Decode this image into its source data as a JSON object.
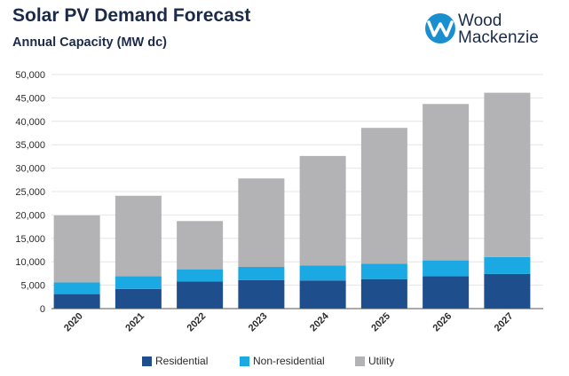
{
  "header": {
    "title": "Solar PV Demand Forecast",
    "subtitle": "Annual Capacity (MW dc)"
  },
  "logo": {
    "line1": "Wood",
    "line2": "Mackenzie"
  },
  "colors": {
    "residential": "#1f4e8c",
    "non_residential": "#1aa9e2",
    "utility": "#b3b3b5",
    "logo_blue": "#1a8fd0"
  },
  "chart_data": {
    "type": "bar",
    "stacked": true,
    "title": "Solar PV Demand Forecast",
    "subtitle": "Annual Capacity (MW dc)",
    "xlabel": "",
    "ylabel": "",
    "categories": [
      "2020",
      "2021",
      "2022",
      "2023",
      "2024",
      "2025",
      "2026",
      "2027"
    ],
    "series": [
      {
        "name": "Residential",
        "values": [
          3100,
          4200,
          5800,
          6100,
          6000,
          6300,
          6900,
          7400
        ]
      },
      {
        "name": "Non-residential",
        "values": [
          2500,
          2700,
          2600,
          2800,
          3200,
          3300,
          3400,
          3600
        ]
      },
      {
        "name": "Utility",
        "values": [
          14300,
          17200,
          10300,
          18900,
          23400,
          29000,
          33400,
          35100
        ]
      }
    ],
    "ylim": [
      0,
      50000
    ],
    "yticks": [
      0,
      5000,
      10000,
      15000,
      20000,
      25000,
      30000,
      35000,
      40000,
      45000,
      50000
    ],
    "ytick_labels": [
      "0",
      "5,000",
      "10,000",
      "15,000",
      "20,000",
      "25,000",
      "30,000",
      "35,000",
      "40,000",
      "45,000",
      "50,000"
    ],
    "grid": true,
    "legend_position": "bottom-center"
  }
}
